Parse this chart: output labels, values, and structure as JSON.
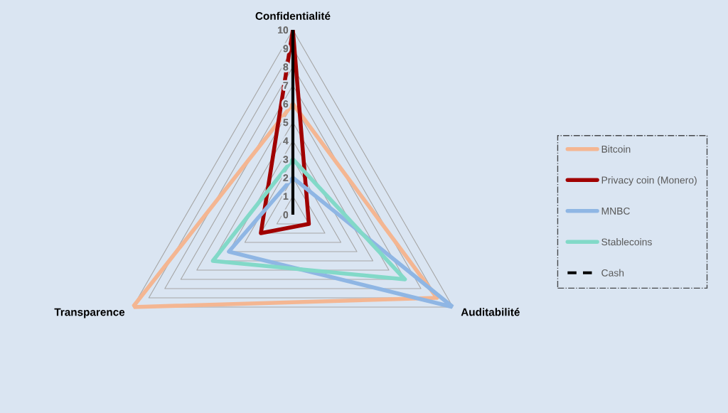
{
  "chart_data": {
    "type": "radar",
    "categories": [
      "Confidentialité",
      "Auditabilité",
      "Transparence"
    ],
    "ylim": [
      0,
      10
    ],
    "yticks": [
      0,
      1,
      2,
      3,
      4,
      5,
      6,
      7,
      8,
      9,
      10
    ],
    "grid": true,
    "legend": "right",
    "marker": "none",
    "series": [
      {
        "name": "Bitcoin",
        "color": "#f4b692",
        "values": [
          6,
          9,
          10
        ]
      },
      {
        "name": "Privacy coin (Monero)",
        "color": "#a00000",
        "values": [
          10,
          1,
          2
        ]
      },
      {
        "name": "MNBC",
        "color": "#8fb6e4",
        "values": [
          2,
          10,
          4
        ]
      },
      {
        "name": "Stablecoins",
        "color": "#82d9c8",
        "values": [
          3,
          7,
          5
        ]
      },
      {
        "name": "Cash",
        "color": "#000000",
        "values": [
          10,
          0,
          0
        ],
        "line_style": "dashed"
      }
    ]
  }
}
